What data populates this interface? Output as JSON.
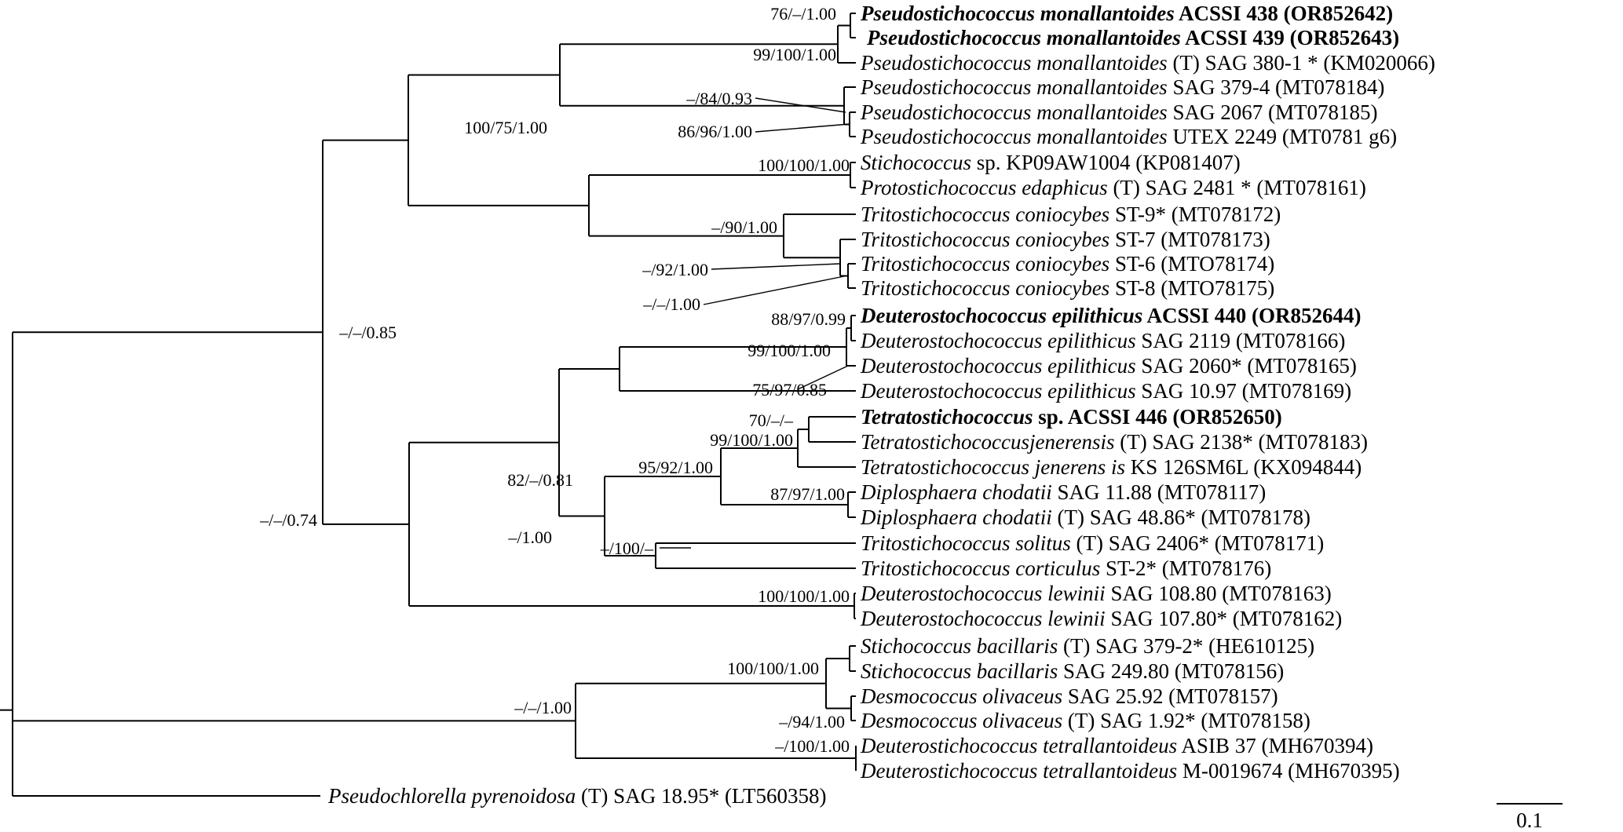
{
  "tips": [
    {
      "id": "t1",
      "parts": [
        {
          "t": "Pseudostichococcus monallantoides",
          "i": true
        },
        {
          "t": " ACSSI 438 (OR852642)"
        }
      ],
      "bold": true
    },
    {
      "id": "t2",
      "parts": [
        {
          "t": "Pseudostichococcus monallantoides",
          "i": true
        },
        {
          "t": " ACSSI 439 (OR852643)"
        }
      ],
      "bold": true
    },
    {
      "id": "t3",
      "parts": [
        {
          "t": "Pseudostichococcus monallantoides",
          "i": true
        },
        {
          "t": " (T) SAG 380-1 * (KM020066)"
        }
      ]
    },
    {
      "id": "t4",
      "parts": [
        {
          "t": "Pseudostichococcus monallantoides",
          "i": true
        },
        {
          "t": " SAG 379-4 (MT078184)"
        }
      ]
    },
    {
      "id": "t5",
      "parts": [
        {
          "t": "Pseudostichococcus monallantoides",
          "i": true
        },
        {
          "t": " SAG 2067 (MT078185)"
        }
      ]
    },
    {
      "id": "t6",
      "parts": [
        {
          "t": "Pseudostichococcus monallantoides",
          "i": true
        },
        {
          "t": " UTEX 2249 (MT0781 g6)"
        }
      ]
    },
    {
      "id": "t7",
      "parts": [
        {
          "t": "Stichococcus",
          "i": true
        },
        {
          "t": " sp. KP09AW1004 (KP081407)"
        }
      ]
    },
    {
      "id": "t8",
      "parts": [
        {
          "t": "Protostichococcus edaphicus",
          "i": true
        },
        {
          "t": " (T) SAG 2481 * (MT078161)"
        }
      ]
    },
    {
      "id": "t9",
      "parts": [
        {
          "t": "Tritostichococcus coniocybes",
          "i": true
        },
        {
          "t": " ST-9* (MT078172)"
        }
      ]
    },
    {
      "id": "t10",
      "parts": [
        {
          "t": "Tritostichococcus coniocybes",
          "i": true
        },
        {
          "t": " ST-7 (MT078173)"
        }
      ]
    },
    {
      "id": "t11",
      "parts": [
        {
          "t": "Tritostichococcus coniocybes",
          "i": true
        },
        {
          "t": " ST-6 (MTO78174)"
        }
      ]
    },
    {
      "id": "t12",
      "parts": [
        {
          "t": "Tritostichococcus coniocybes",
          "i": true
        },
        {
          "t": " ST-8 (MTO78175)"
        }
      ]
    },
    {
      "id": "t13",
      "parts": [
        {
          "t": "Deuterostochococcus epilithicus",
          "i": true
        },
        {
          "t": " ACSSI 440 (OR852644)"
        }
      ],
      "bold": true
    },
    {
      "id": "t14",
      "parts": [
        {
          "t": "Deuterostochococcus epilithicus",
          "i": true
        },
        {
          "t": " SAG 2119 (MT078166)"
        }
      ]
    },
    {
      "id": "t15",
      "parts": [
        {
          "t": "Deuterostochococcus epilithicus",
          "i": true
        },
        {
          "t": " SAG 2060* (MT078165)"
        }
      ]
    },
    {
      "id": "t16",
      "parts": [
        {
          "t": "Deuterostochococcus epilithicus",
          "i": true
        },
        {
          "t": " SAG 10.97 (MT078169)"
        }
      ]
    },
    {
      "id": "t17",
      "parts": [
        {
          "t": "Tetratostichococcus",
          "i": true
        },
        {
          "t": " sp. ACSSI 446 (OR852650)"
        }
      ],
      "bold": true
    },
    {
      "id": "t18",
      "parts": [
        {
          "t": "Tetratostichococcusjenerensis",
          "i": true
        },
        {
          "t": " (T) SAG 2138* (MT078183)"
        }
      ]
    },
    {
      "id": "t19",
      "parts": [
        {
          "t": "Tetratostichococcus jenerens is",
          "i": true
        },
        {
          "t": " KS 126SM6L (KX094844)"
        }
      ]
    },
    {
      "id": "t20",
      "parts": [
        {
          "t": "Diplosphaera chodatii",
          "i": true
        },
        {
          "t": " SAG 11.88 (MT078117)"
        }
      ]
    },
    {
      "id": "t21",
      "parts": [
        {
          "t": "Diplosphaera chodatii",
          "i": true
        },
        {
          "t": " (T) SAG 48.86* (MT078178)"
        }
      ]
    },
    {
      "id": "t22",
      "parts": [
        {
          "t": "Tritostichococcus solitus",
          "i": true
        },
        {
          "t": " (T) SAG 2406* (MT078171)"
        }
      ]
    },
    {
      "id": "t23",
      "parts": [
        {
          "t": "Tritostichococcus corticulus",
          "i": true
        },
        {
          "t": " ST-2* (MT078176)"
        }
      ]
    },
    {
      "id": "t24",
      "parts": [
        {
          "t": "Deuterostochococcus lewinii",
          "i": true
        },
        {
          "t": " SAG 108.80 (MT078163)"
        }
      ]
    },
    {
      "id": "t25",
      "parts": [
        {
          "t": "Deuterostochococcus lewinii",
          "i": true
        },
        {
          "t": " SAG 107.80* (MT078162)"
        }
      ]
    },
    {
      "id": "t26",
      "parts": [
        {
          "t": "Stichococcus bacillaris",
          "i": true
        },
        {
          "t": " (T) SAG 379-2* (HE610125)"
        }
      ]
    },
    {
      "id": "t27",
      "parts": [
        {
          "t": "Stichococcus bacillaris",
          "i": true
        },
        {
          "t": " SAG 249.80 (MT078156)"
        }
      ]
    },
    {
      "id": "t28",
      "parts": [
        {
          "t": "Desmococcus olivaceus",
          "i": true
        },
        {
          "t": " SAG 25.92 (MT078157)"
        }
      ]
    },
    {
      "id": "t29",
      "parts": [
        {
          "t": "Desmococcus olivaceus",
          "i": true
        },
        {
          "t": " (T) SAG 1.92* (MT078158)"
        }
      ]
    },
    {
      "id": "t30",
      "parts": [
        {
          "t": "Deuterostichococcus tetrallantoideus",
          "i": true
        },
        {
          "t": " ASIB 37 (MH670394)"
        }
      ]
    },
    {
      "id": "t31",
      "parts": [
        {
          "t": "Deuterostichococcus tetrallantoideus",
          "i": true
        },
        {
          "t": " M-0019674 (MH670395)"
        }
      ]
    },
    {
      "id": "t32",
      "parts": [
        {
          "t": "Pseudochlorella pyrenoidosa",
          "i": true
        },
        {
          "t": " (T) SAG 18.95* (LT560358)"
        }
      ]
    }
  ],
  "supports": {
    "s_pm438": "76/–/1.00",
    "s_pm_core": "99/100/1.00",
    "s_pm_sub1": "–/84/0.93",
    "s_pm_sub2": "86/96/1.00",
    "s_ps_clade": "100/75/1.00",
    "s_proto": "100/100/1.00",
    "s_trito_a": "–/90/1.00",
    "s_trito_b": "–/92/1.00",
    "s_trito_c": "–/–/1.00",
    "s_deut_ep1": "88/97/0.99",
    "s_deut_ep2": "99/100/1.00",
    "s_deut_ep3": "75/97/0.85",
    "s_tetra_a": "70/–/–",
    "s_tetra_b": "99/100/1.00",
    "s_tetra_dip": "95/92/1.00",
    "s_dip": "87/97/1.00",
    "s_big_b": "82/–/0.81",
    "s_big_b2": "–/1.00",
    "s_trito_sc": "–/100/–",
    "s_lewinii": "100/100/1.00",
    "s_upper": "–/–/0.85",
    "s_stich": "100/100/1.00",
    "s_desmo": "–/94/1.00",
    "s_stich_clade": "–/–/1.00",
    "s_deutet": "–/100/1.00",
    "s_ingroup": "–/–/0.74"
  },
  "scale_bar_label": "0.1"
}
